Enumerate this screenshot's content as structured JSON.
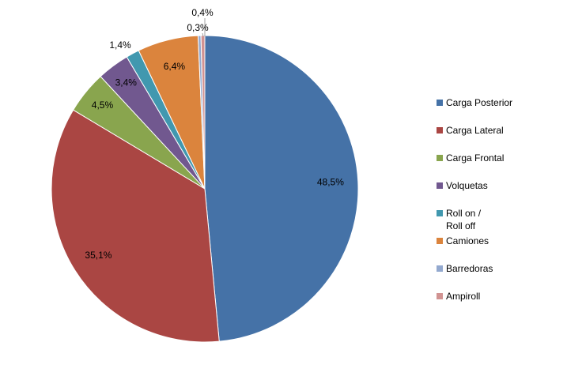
{
  "chart_data": {
    "type": "pie",
    "title": "",
    "slices": [
      {
        "label": "Carga Posterior",
        "value": 48.5,
        "display": "48,5%",
        "color": "#4572A7"
      },
      {
        "label": "Carga Lateral",
        "value": 35.1,
        "display": "35,1%",
        "color": "#AA4643"
      },
      {
        "label": "Carga Frontal",
        "value": 4.5,
        "display": "4,5%",
        "color": "#89A54E"
      },
      {
        "label": "Volquetas",
        "value": 3.4,
        "display": "3,4%",
        "color": "#71588F"
      },
      {
        "label": "Roll on /\nRoll off",
        "value": 1.4,
        "display": "1,4%",
        "color": "#4198AF"
      },
      {
        "label": "Camiones",
        "value": 6.4,
        "display": "6,4%",
        "color": "#DB843D"
      },
      {
        "label": "Barredoras",
        "value": 0.3,
        "display": "0,3%",
        "color": "#93A9CF"
      },
      {
        "label": "Ampiroll",
        "value": 0.4,
        "display": "0,4%",
        "color": "#D19392"
      }
    ],
    "legend_position": "right",
    "start_angle": "12 o'clock",
    "direction": "clockwise"
  }
}
